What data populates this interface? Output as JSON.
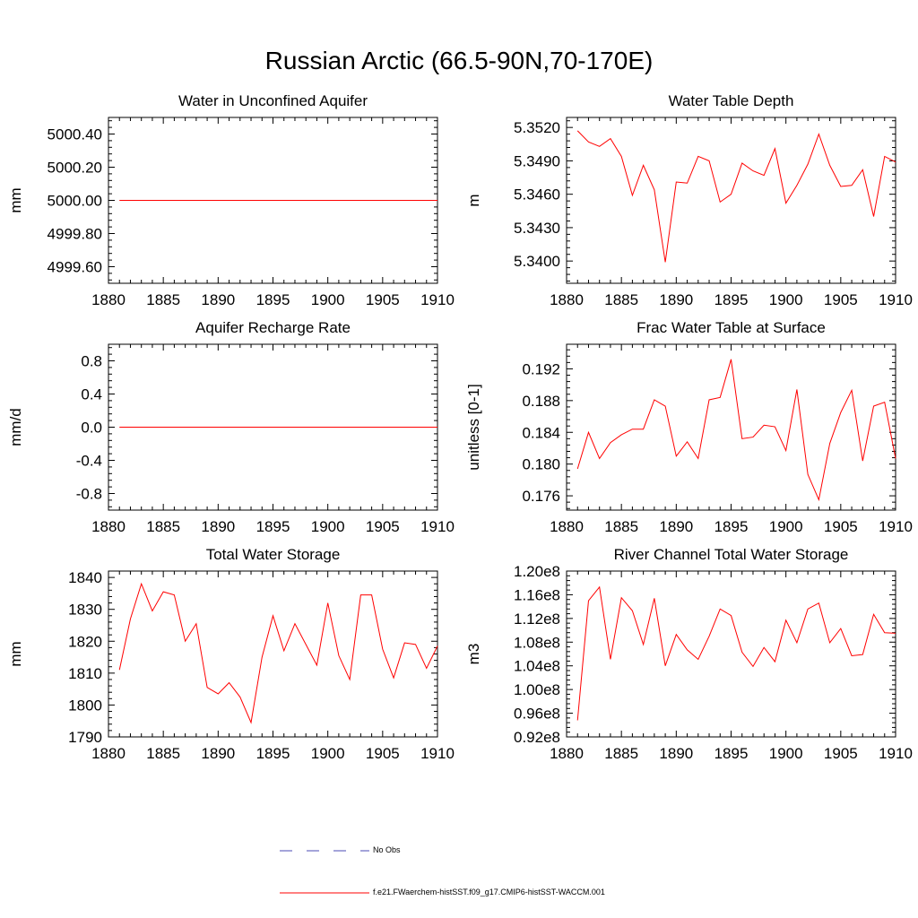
{
  "title": "Russian Arctic (66.5-90N,70-170E)",
  "legend": {
    "obs_label": "No Obs",
    "obs_color": "#4b4bb4",
    "model_label": "f.e21.FWaerchem-histSST.f09_g17.CMIP6-histSST-WACCM.001",
    "model_color": "#ff0000"
  },
  "chart_data": [
    {
      "type": "line",
      "title": "Water in Unconfined Aquifer",
      "ylabel": "mm",
      "xlim": [
        1880,
        1910
      ],
      "ylim": [
        4999.5,
        5000.5
      ],
      "xticks": [
        1880,
        1885,
        1890,
        1895,
        1900,
        1905,
        1910
      ],
      "yticks": [
        4999.6,
        4999.8,
        5000.0,
        5000.2,
        5000.4
      ],
      "ytick_labels": [
        "4999.60",
        "4999.80",
        "5000.00",
        "5000.20",
        "5000.40"
      ],
      "x": [
        1881,
        1882,
        1883,
        1884,
        1885,
        1886,
        1887,
        1888,
        1889,
        1890,
        1891,
        1892,
        1893,
        1894,
        1895,
        1896,
        1897,
        1898,
        1899,
        1900,
        1901,
        1902,
        1903,
        1904,
        1905,
        1906,
        1907,
        1908,
        1909,
        1910
      ],
      "series": [
        {
          "values": [
            5000,
            5000,
            5000,
            5000,
            5000,
            5000,
            5000,
            5000,
            5000,
            5000,
            5000,
            5000,
            5000,
            5000,
            5000,
            5000,
            5000,
            5000,
            5000,
            5000,
            5000,
            5000,
            5000,
            5000,
            5000,
            5000,
            5000,
            5000,
            5000,
            5000
          ]
        }
      ]
    },
    {
      "type": "line",
      "title": "Water Table Depth",
      "ylabel": "m",
      "xlim": [
        1880,
        1910
      ],
      "ylim": [
        5.338,
        5.3529
      ],
      "xticks": [
        1880,
        1885,
        1890,
        1895,
        1900,
        1905,
        1910
      ],
      "yticks": [
        5.34,
        5.343,
        5.346,
        5.349,
        5.352
      ],
      "ytick_labels": [
        "5.3400",
        "5.3430",
        "5.3460",
        "5.3490",
        "5.3520"
      ],
      "x": [
        1881,
        1882,
        1883,
        1884,
        1885,
        1886,
        1887,
        1888,
        1889,
        1890,
        1891,
        1892,
        1893,
        1894,
        1895,
        1896,
        1897,
        1898,
        1899,
        1900,
        1901,
        1902,
        1903,
        1904,
        1905,
        1906,
        1907,
        1908,
        1909,
        1910
      ],
      "series": [
        {
          "values": [
            5.3517,
            5.3507,
            5.3503,
            5.351,
            5.3494,
            5.3459,
            5.3486,
            5.3464,
            5.3399,
            5.3471,
            5.347,
            5.3494,
            5.349,
            5.3453,
            5.346,
            5.3488,
            5.3481,
            5.3477,
            5.3501,
            5.3452,
            5.3468,
            5.3487,
            5.3514,
            5.3486,
            5.3467,
            5.3468,
            5.3482,
            5.344,
            5.3494,
            5.3489
          ]
        }
      ]
    },
    {
      "type": "line",
      "title": "Aquifer Recharge Rate",
      "ylabel": "mm/d",
      "xlim": [
        1880,
        1910
      ],
      "ylim": [
        -1.0,
        1.0
      ],
      "xticks": [
        1880,
        1885,
        1890,
        1895,
        1900,
        1905,
        1910
      ],
      "yticks": [
        -0.8,
        -0.4,
        0.0,
        0.4,
        0.8
      ],
      "ytick_labels": [
        "-0.8",
        "-0.4",
        "0.0",
        "0.4",
        "0.8"
      ],
      "x": [
        1881,
        1882,
        1883,
        1884,
        1885,
        1886,
        1887,
        1888,
        1889,
        1890,
        1891,
        1892,
        1893,
        1894,
        1895,
        1896,
        1897,
        1898,
        1899,
        1900,
        1901,
        1902,
        1903,
        1904,
        1905,
        1906,
        1907,
        1908,
        1909,
        1910
      ],
      "series": [
        {
          "values": [
            0,
            0,
            0,
            0,
            0,
            0,
            0,
            0,
            0,
            0,
            0,
            0,
            0,
            0,
            0,
            0,
            0,
            0,
            0,
            0,
            0,
            0,
            0,
            0,
            0,
            0,
            0,
            0,
            0,
            0
          ]
        }
      ]
    },
    {
      "type": "line",
      "title": "Frac Water Table at Surface",
      "ylabel": "unitless [0-1]",
      "xlim": [
        1880,
        1910
      ],
      "ylim": [
        0.1742,
        0.1951
      ],
      "xticks": [
        1880,
        1885,
        1890,
        1895,
        1900,
        1905,
        1910
      ],
      "yticks": [
        0.176,
        0.18,
        0.184,
        0.188,
        0.192
      ],
      "ytick_labels": [
        "0.176",
        "0.180",
        "0.184",
        "0.188",
        "0.192"
      ],
      "x": [
        1881,
        1882,
        1883,
        1884,
        1885,
        1886,
        1887,
        1888,
        1889,
        1890,
        1891,
        1892,
        1893,
        1894,
        1895,
        1896,
        1897,
        1898,
        1899,
        1900,
        1901,
        1902,
        1903,
        1904,
        1905,
        1906,
        1907,
        1908,
        1909,
        1910
      ],
      "series": [
        {
          "values": [
            0.1794,
            0.184,
            0.1807,
            0.1827,
            0.1837,
            0.1844,
            0.1844,
            0.1881,
            0.1873,
            0.181,
            0.1828,
            0.1807,
            0.1881,
            0.1884,
            0.1932,
            0.1832,
            0.1834,
            0.1849,
            0.1847,
            0.1817,
            0.1894,
            0.1787,
            0.1755,
            0.1826,
            0.1865,
            0.1893,
            0.1804,
            0.1873,
            0.1878,
            0.1807
          ]
        }
      ]
    },
    {
      "type": "line",
      "title": "Total Water Storage",
      "ylabel": "mm",
      "xlim": [
        1880,
        1910
      ],
      "ylim": [
        1790,
        1842
      ],
      "xticks": [
        1880,
        1885,
        1890,
        1895,
        1900,
        1905,
        1910
      ],
      "yticks": [
        1790,
        1800,
        1810,
        1820,
        1830,
        1840
      ],
      "ytick_labels": [
        "1790",
        "1800",
        "1810",
        "1820",
        "1830",
        "1840"
      ],
      "x": [
        1881,
        1882,
        1883,
        1884,
        1885,
        1886,
        1887,
        1888,
        1889,
        1890,
        1891,
        1892,
        1893,
        1894,
        1895,
        1896,
        1897,
        1898,
        1899,
        1900,
        1901,
        1902,
        1903,
        1904,
        1905,
        1906,
        1907,
        1908,
        1909,
        1910
      ],
      "series": [
        {
          "values": [
            1811,
            1827,
            1838,
            1829.5,
            1835.5,
            1834.5,
            1820,
            1825.5,
            1805.5,
            1803.5,
            1807,
            1802.5,
            1794.5,
            1815,
            1828,
            1817,
            1825.5,
            1819,
            1812.5,
            1832,
            1815.5,
            1808,
            1834.5,
            1834.5,
            1817.5,
            1808.5,
            1819.5,
            1819,
            1811.5,
            1818.5
          ]
        }
      ]
    },
    {
      "type": "line",
      "title": "River Channel Total Water Storage",
      "ylabel": "m3",
      "xlim": [
        1880,
        1910
      ],
      "ylim": [
        92000000.0,
        120000000.0
      ],
      "xticks": [
        1880,
        1885,
        1890,
        1895,
        1900,
        1905,
        1910
      ],
      "yticks": [
        92000000.0,
        96000000.0,
        100000000.0,
        104000000.0,
        108000000.0,
        112000000.0,
        116000000.0,
        120000000.0
      ],
      "ytick_labels": [
        "0.92e8",
        "0.96e8",
        "1.00e8",
        "1.04e8",
        "1.08e8",
        "1.12e8",
        "1.16e8",
        "1.20e8"
      ],
      "x": [
        1881,
        1882,
        1883,
        1884,
        1885,
        1886,
        1887,
        1888,
        1889,
        1890,
        1891,
        1892,
        1893,
        1894,
        1895,
        1896,
        1897,
        1898,
        1899,
        1900,
        1901,
        1902,
        1903,
        1904,
        1905,
        1906,
        1907,
        1908,
        1909,
        1910
      ],
      "series": [
        {
          "values": [
            94800000.0,
            115000000.0,
            117300000.0,
            105100000.0,
            115500000.0,
            113300000.0,
            107600000.0,
            115400000.0,
            104000000.0,
            109300000.0,
            106700000.0,
            105100000.0,
            109000000.0,
            113600000.0,
            112500000.0,
            106300000.0,
            103900000.0,
            107100000.0,
            104700000.0,
            111700000.0,
            107900000.0,
            113600000.0,
            114600000.0,
            107900000.0,
            110300000.0,
            105700000.0,
            105900000.0,
            112700000.0,
            109600000.0,
            109500000.0
          ]
        }
      ]
    }
  ]
}
